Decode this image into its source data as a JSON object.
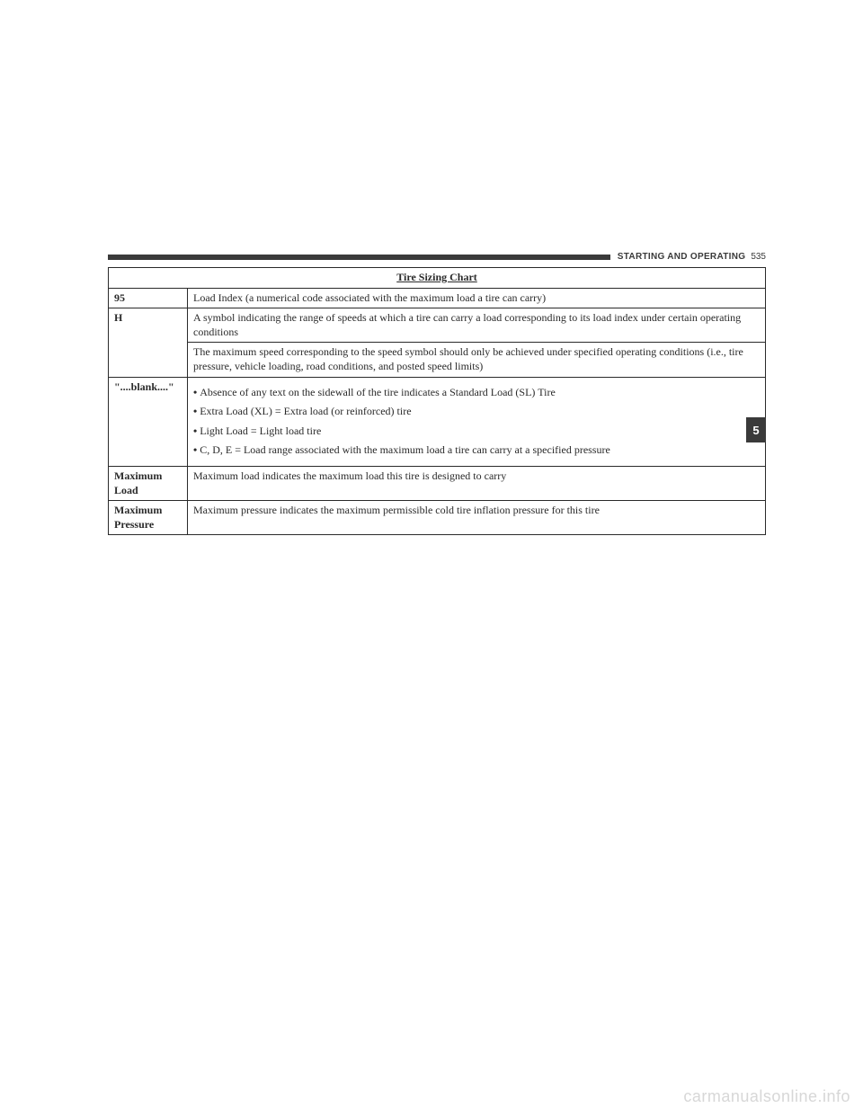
{
  "header": {
    "section": "STARTING AND OPERATING",
    "page_number": "535"
  },
  "side_tab": "5",
  "watermark": "carmanualsonline.info",
  "table": {
    "title": "Tire Sizing Chart",
    "rows": [
      {
        "label": "95",
        "cells": [
          "Load Index (a numerical code associated with the maximum load a tire can carry)"
        ]
      },
      {
        "label": "H",
        "cells": [
          "A symbol indicating the range of speeds at which a tire can carry a load corresponding to its load index under certain operating conditions",
          "The maximum speed corresponding to the speed symbol should only be achieved under specified operating conditions (i.e., tire pressure, vehicle loading, road conditions, and posted speed limits)"
        ]
      },
      {
        "label": "\"....blank....\"",
        "bullets": [
          "Absence of any text on the sidewall of the tire indicates a Standard Load (SL) Tire",
          "Extra Load (XL) = Extra load (or reinforced) tire",
          "Light Load = Light load tire",
          "C, D, E = Load range associated with the maximum load a tire can carry at a specified pressure"
        ]
      },
      {
        "label": "Maximum Load",
        "cells": [
          "Maximum load indicates the maximum load this tire is designed to carry"
        ]
      },
      {
        "label": "Maximum Pressure",
        "cells": [
          "Maximum pressure indicates the maximum permissible cold tire inflation pressure for this tire"
        ]
      }
    ]
  }
}
